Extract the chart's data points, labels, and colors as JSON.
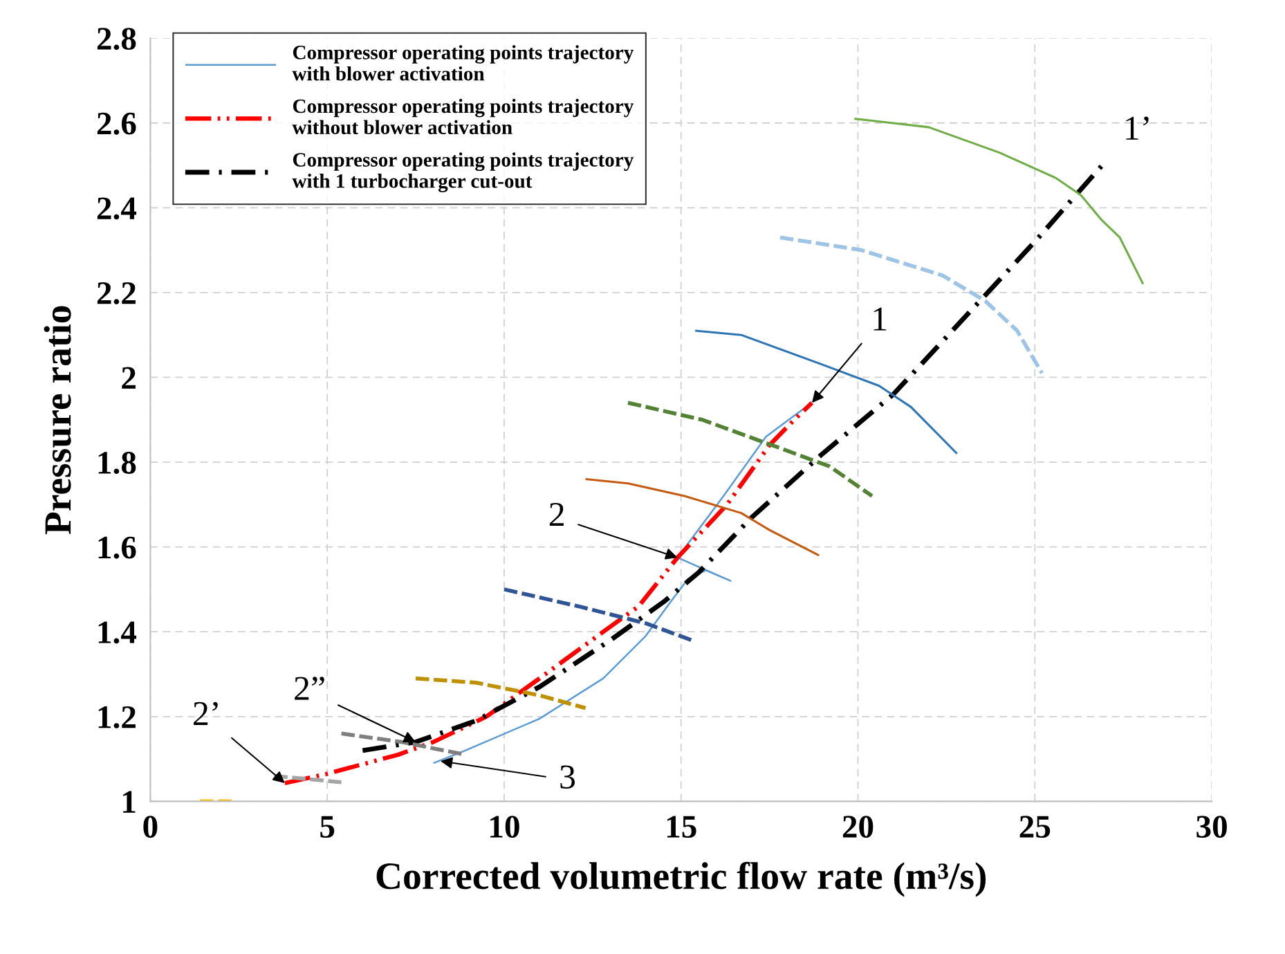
{
  "chart_data": {
    "type": "line",
    "xlabel": "Corrected volumetric flow rate (m³/s)",
    "ylabel": "Pressure ratio",
    "xlim": [
      0,
      30
    ],
    "xticks": [
      0,
      5,
      10,
      15,
      20,
      25,
      30
    ],
    "ylim": [
      1,
      2.8
    ],
    "yticks": [
      1,
      1.2,
      1.4,
      1.6,
      1.8,
      2,
      2.2,
      2.4,
      2.6,
      2.8
    ],
    "grid": true,
    "legend": "top left",
    "series": [
      {
        "name": "Compressor operating points trajectory with blower activation",
        "color": "#5b9bd5",
        "line_style": "solid",
        "x": [
          8.0,
          8.9,
          11.0,
          12.8,
          14.0,
          14.7,
          15.2,
          15.7,
          16.4,
          14.9,
          16.2,
          17.4,
          18.2,
          18.7
        ],
        "values": [
          1.09,
          1.12,
          1.195,
          1.29,
          1.39,
          1.47,
          1.525,
          1.545,
          1.52,
          1.575,
          1.72,
          1.86,
          1.91,
          1.94
        ]
      },
      {
        "name": "Compressor operating points trajectory without blower activation",
        "color": "#ff0000",
        "line_style": "dashdotdot",
        "x": [
          3.8,
          5.0,
          7.0,
          8.0,
          9.5,
          11.0,
          12.8,
          13.8,
          14.9,
          16.3,
          17.5,
          18.2,
          18.7
        ],
        "values": [
          1.043,
          1.065,
          1.11,
          1.14,
          1.2,
          1.29,
          1.4,
          1.46,
          1.575,
          1.7,
          1.84,
          1.9,
          1.94
        ]
      },
      {
        "name": "Compressor operating points trajectory with 1 turbocharger cut-out",
        "color": "#000000",
        "line_style": "dashdot",
        "x": [
          6.0,
          7.5,
          9.2,
          11.0,
          13.0,
          14.5,
          15.5,
          17.0,
          19.0,
          21.0,
          23.0,
          25.0,
          26.9
        ],
        "values": [
          1.12,
          1.14,
          1.19,
          1.27,
          1.38,
          1.47,
          1.54,
          1.67,
          1.82,
          1.96,
          2.14,
          2.32,
          2.5
        ]
      },
      {
        "color": "#70ad47",
        "line_style": "solid",
        "x": [
          19.9,
          22.0,
          24.0,
          25.6,
          26.3,
          26.9,
          27.4,
          28.06
        ],
        "values": [
          2.61,
          2.59,
          2.53,
          2.47,
          2.43,
          2.37,
          2.33,
          2.22
        ]
      },
      {
        "color": "#9dc3e6",
        "line_style": "dashed",
        "x": [
          17.8,
          20.1,
          22.4,
          23.6,
          24.5,
          25.2
        ],
        "values": [
          2.33,
          2.3,
          2.24,
          2.18,
          2.11,
          2.01
        ]
      },
      {
        "color": "#2e75b6",
        "line_style": "solid",
        "x": [
          15.4,
          16.7,
          19.0,
          20.6,
          21.5,
          22.8
        ],
        "values": [
          2.11,
          2.1,
          2.03,
          1.98,
          1.93,
          1.82
        ]
      },
      {
        "color": "#548235",
        "line_style": "dashed",
        "x": [
          13.5,
          15.6,
          17.9,
          19.2,
          20.4
        ],
        "values": [
          1.94,
          1.9,
          1.83,
          1.79,
          1.72
        ]
      },
      {
        "color": "#c55a11",
        "line_style": "solid",
        "x": [
          12.3,
          13.5,
          15.1,
          16.7,
          17.5,
          18.9
        ],
        "values": [
          1.76,
          1.75,
          1.72,
          1.68,
          1.64,
          1.58
        ]
      },
      {
        "color": "#2f5597",
        "line_style": "dashed",
        "x": [
          10.0,
          12.1,
          14.0,
          15.3
        ],
        "values": [
          1.5,
          1.46,
          1.42,
          1.38
        ]
      },
      {
        "color": "#bf9000",
        "line_style": "dashed",
        "x": [
          7.5,
          9.2,
          11.0,
          12.3
        ],
        "values": [
          1.29,
          1.28,
          1.25,
          1.22
        ]
      },
      {
        "color": "#7f7f7f",
        "line_style": "dashed",
        "x": [
          5.4,
          7.1,
          8.9
        ],
        "values": [
          1.16,
          1.14,
          1.11
        ]
      },
      {
        "color": "#a5a5a5",
        "line_style": "dashed",
        "x": [
          3.5,
          5.4
        ],
        "values": [
          1.06,
          1.045
        ]
      },
      {
        "color": "#ffc000",
        "line_style": "dashed",
        "x": [
          1.4,
          2.4
        ],
        "values": [
          1.0,
          1.0
        ]
      }
    ],
    "annotations": [
      {
        "text": "1",
        "x": 18.7,
        "y": 1.94
      },
      "1’",
      {
        "text": "2",
        "x": 14.9,
        "y": 1.575
      },
      {
        "text": "2”",
        "x": 7.5,
        "y": 1.14
      },
      {
        "text": "2’",
        "x": 3.8,
        "y": 1.043
      },
      {
        "text": "3",
        "x": 8.2,
        "y": 1.095
      }
    ]
  }
}
